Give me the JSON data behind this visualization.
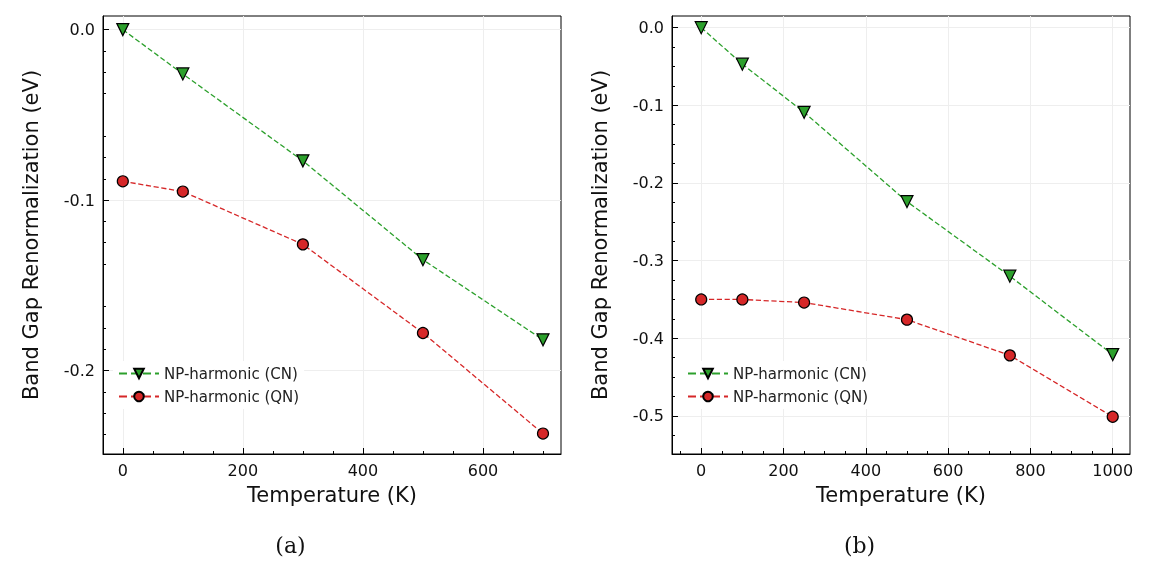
{
  "chart_data": [
    {
      "type": "line",
      "xlabel": "Temperature (K)",
      "ylabel": "Band Gap Renormalization (eV)",
      "xlim": [
        -33,
        730
      ],
      "ylim": [
        -0.249,
        0.008
      ],
      "xticks": [
        0,
        200,
        400,
        600
      ],
      "yticks": [
        {
          "value": 0,
          "label": "0.0"
        },
        -0.1,
        -0.2
      ],
      "grid": true,
      "legend": "bottom left",
      "line_style": "dashed",
      "annotations": [
        "(a)"
      ],
      "series": [
        {
          "name": "NP-harmonic (CN)",
          "color": "#2ca02c",
          "marker": "triangle",
          "x": [
            0,
            100,
            300,
            500,
            700
          ],
          "values": [
            0,
            -0.026,
            -0.077,
            -0.135,
            -0.182
          ]
        },
        {
          "name": "NP-harmonic (QN)",
          "color": "#d62728",
          "marker": "circle",
          "x": [
            0,
            100,
            300,
            500,
            700
          ],
          "values": [
            -0.089,
            -0.095,
            -0.126,
            -0.178,
            -0.237
          ]
        }
      ]
    },
    {
      "type": "line",
      "xlabel": "Temperature (K)",
      "ylabel": "Band Gap Renormalization (eV)",
      "xlim": [
        -71,
        1042
      ],
      "ylim": [
        -0.549,
        0.015
      ],
      "xticks": [
        0,
        200,
        400,
        600,
        800,
        1000
      ],
      "yticks": [
        {
          "value": 0,
          "label": "0.0"
        },
        -0.1,
        -0.2,
        -0.3,
        -0.4,
        -0.5
      ],
      "grid": true,
      "legend": "bottom left",
      "line_style": "dashed",
      "annotations": [
        "(b)"
      ],
      "series": [
        {
          "name": "NP-harmonic (CN)",
          "color": "#2ca02c",
          "marker": "triangle",
          "x": [
            0,
            100,
            250,
            500,
            750,
            1000
          ],
          "values": [
            0,
            -0.047,
            -0.109,
            -0.224,
            -0.32,
            -0.421
          ]
        },
        {
          "name": "NP-harmonic (QN)",
          "color": "#d62728",
          "marker": "circle",
          "x": [
            0,
            100,
            250,
            500,
            750,
            1000
          ],
          "values": [
            -0.35,
            -0.35,
            -0.354,
            -0.376,
            -0.422,
            -0.501
          ]
        }
      ]
    }
  ]
}
